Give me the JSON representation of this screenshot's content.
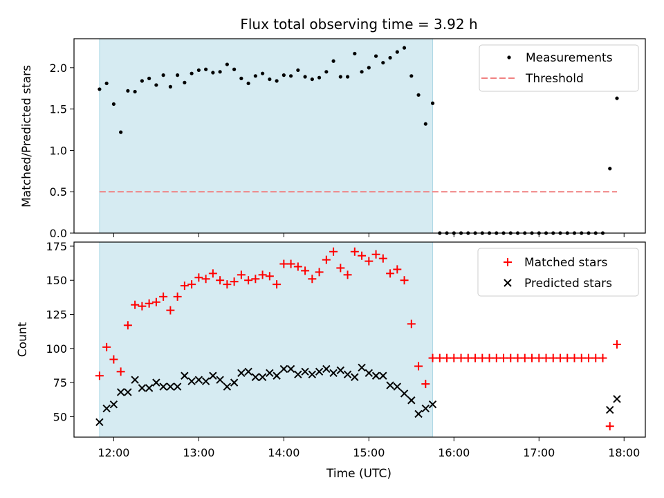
{
  "chart_data": [
    {
      "type": "scatter",
      "title": "Flux total observing time = 3.92 h",
      "ylabel": "Matched/Predicted stars",
      "xlabel": "",
      "xlim": [
        "11:32",
        "18:15"
      ],
      "ylim": [
        0,
        2.35
      ],
      "yticks": [
        0.0,
        0.5,
        1.0,
        1.5,
        2.0
      ],
      "ytick_labels": [
        "0.0",
        "0.5",
        "1.0",
        "1.5",
        "2.0"
      ],
      "xticks": [
        "12:00",
        "13:00",
        "14:00",
        "15:00",
        "16:00",
        "17:00",
        "18:00"
      ],
      "shaded_span": [
        "11:50",
        "15:45"
      ],
      "shade_color": "#add8e6",
      "legend_position": "top-right",
      "legend": [
        "Measurements",
        "Threshold"
      ],
      "threshold": {
        "name": "Threshold",
        "value": 0.5,
        "x": [
          "11:50",
          "17:55"
        ],
        "color": "#f08080",
        "style": "dashed"
      },
      "series": [
        {
          "name": "Measurements",
          "marker": "dot",
          "color": "#000000",
          "x": [
            "11:50",
            "11:55",
            "12:00",
            "12:05",
            "12:10",
            "12:15",
            "12:20",
            "12:25",
            "12:30",
            "12:35",
            "12:40",
            "12:45",
            "12:50",
            "12:55",
            "13:00",
            "13:05",
            "13:10",
            "13:15",
            "13:20",
            "13:25",
            "13:30",
            "13:35",
            "13:40",
            "13:45",
            "13:50",
            "13:55",
            "14:00",
            "14:05",
            "14:10",
            "14:15",
            "14:20",
            "14:25",
            "14:30",
            "14:35",
            "14:40",
            "14:45",
            "14:50",
            "14:55",
            "15:00",
            "15:05",
            "15:10",
            "15:15",
            "15:20",
            "15:25",
            "15:30",
            "15:35",
            "15:40",
            "15:45",
            "15:50",
            "15:55",
            "16:00",
            "16:05",
            "16:10",
            "16:15",
            "16:20",
            "16:25",
            "16:30",
            "16:35",
            "16:40",
            "16:45",
            "16:50",
            "16:55",
            "17:00",
            "17:05",
            "17:10",
            "17:15",
            "17:20",
            "17:25",
            "17:30",
            "17:35",
            "17:40",
            "17:45",
            "17:50",
            "17:55"
          ],
          "y": [
            1.74,
            1.81,
            1.56,
            1.22,
            1.72,
            1.71,
            1.84,
            1.87,
            1.79,
            1.91,
            1.77,
            1.91,
            1.82,
            1.93,
            1.97,
            1.98,
            1.94,
            1.95,
            2.04,
            1.98,
            1.87,
            1.81,
            1.9,
            1.93,
            1.86,
            1.84,
            1.91,
            1.9,
            1.97,
            1.89,
            1.86,
            1.88,
            1.95,
            2.08,
            1.89,
            1.89,
            2.17,
            1.95,
            2.0,
            2.14,
            2.06,
            2.12,
            2.19,
            2.24,
            1.9,
            1.67,
            1.32,
            1.57,
            0,
            0,
            0,
            0,
            0,
            0,
            0,
            0,
            0,
            0,
            0,
            0,
            0,
            0,
            0,
            0,
            0,
            0,
            0,
            0,
            0,
            0,
            0,
            0,
            0.78,
            1.63
          ]
        }
      ]
    },
    {
      "type": "scatter",
      "title": "",
      "ylabel": "Count",
      "xlabel": "Time (UTC)",
      "xlim": [
        "11:32",
        "18:15"
      ],
      "ylim": [
        35,
        178
      ],
      "yticks": [
        50,
        75,
        100,
        125,
        150,
        175
      ],
      "ytick_labels": [
        "50",
        "75",
        "100",
        "125",
        "150",
        "175"
      ],
      "xticks": [
        "12:00",
        "13:00",
        "14:00",
        "15:00",
        "16:00",
        "17:00",
        "18:00"
      ],
      "xtick_labels": [
        "12:00",
        "13:00",
        "14:00",
        "15:00",
        "16:00",
        "17:00",
        "18:00"
      ],
      "shaded_span": [
        "11:50",
        "15:45"
      ],
      "shade_color": "#add8e6",
      "legend_position": "top-right",
      "legend": [
        "Matched stars",
        "Predicted stars"
      ],
      "series": [
        {
          "name": "Matched stars",
          "marker": "plus",
          "color": "#ff0000",
          "x": [
            "11:50",
            "11:55",
            "12:00",
            "12:05",
            "12:10",
            "12:15",
            "12:20",
            "12:25",
            "12:30",
            "12:35",
            "12:40",
            "12:45",
            "12:50",
            "12:55",
            "13:00",
            "13:05",
            "13:10",
            "13:15",
            "13:20",
            "13:25",
            "13:30",
            "13:35",
            "13:40",
            "13:45",
            "13:50",
            "13:55",
            "14:00",
            "14:05",
            "14:10",
            "14:15",
            "14:20",
            "14:25",
            "14:30",
            "14:35",
            "14:40",
            "14:45",
            "14:50",
            "14:55",
            "15:00",
            "15:05",
            "15:10",
            "15:15",
            "15:20",
            "15:25",
            "15:30",
            "15:35",
            "15:40",
            "15:45",
            "15:50",
            "15:55",
            "16:00",
            "16:05",
            "16:10",
            "16:15",
            "16:20",
            "16:25",
            "16:30",
            "16:35",
            "16:40",
            "16:45",
            "16:50",
            "16:55",
            "17:00",
            "17:05",
            "17:10",
            "17:15",
            "17:20",
            "17:25",
            "17:30",
            "17:35",
            "17:40",
            "17:45",
            "17:50",
            "17:55"
          ],
          "y": [
            80,
            101,
            92,
            83,
            117,
            132,
            131,
            133,
            134,
            138,
            128,
            138,
            146,
            147,
            152,
            151,
            155,
            150,
            147,
            149,
            154,
            150,
            151,
            154,
            153,
            147,
            162,
            162,
            160,
            157,
            151,
            156,
            165,
            171,
            159,
            154,
            171,
            168,
            164,
            169,
            166,
            155,
            158,
            150,
            118,
            87,
            74,
            93,
            93,
            93,
            93,
            93,
            93,
            93,
            93,
            93,
            93,
            93,
            93,
            93,
            93,
            93,
            93,
            93,
            93,
            93,
            93,
            93,
            93,
            93,
            93,
            93,
            43,
            103
          ]
        },
        {
          "name": "Predicted stars",
          "marker": "x",
          "color": "#000000",
          "x": [
            "11:50",
            "11:55",
            "12:00",
            "12:05",
            "12:10",
            "12:15",
            "12:20",
            "12:25",
            "12:30",
            "12:35",
            "12:40",
            "12:45",
            "12:50",
            "12:55",
            "13:00",
            "13:05",
            "13:10",
            "13:15",
            "13:20",
            "13:25",
            "13:30",
            "13:35",
            "13:40",
            "13:45",
            "13:50",
            "13:55",
            "14:00",
            "14:05",
            "14:10",
            "14:15",
            "14:20",
            "14:25",
            "14:30",
            "14:35",
            "14:40",
            "14:45",
            "14:50",
            "14:55",
            "15:00",
            "15:05",
            "15:10",
            "15:15",
            "15:20",
            "15:25",
            "15:30",
            "15:35",
            "15:40",
            "15:45",
            "17:50",
            "17:55"
          ],
          "y": [
            46,
            56,
            59,
            68,
            68,
            77,
            71,
            71,
            75,
            72,
            72,
            72,
            80,
            76,
            77,
            76,
            80,
            77,
            72,
            75,
            82,
            83,
            79,
            79,
            82,
            80,
            85,
            85,
            81,
            83,
            81,
            83,
            85,
            82,
            84,
            81,
            79,
            86,
            82,
            80,
            80,
            73,
            72,
            67,
            62,
            52,
            56,
            59,
            55,
            63
          ]
        }
      ]
    }
  ]
}
